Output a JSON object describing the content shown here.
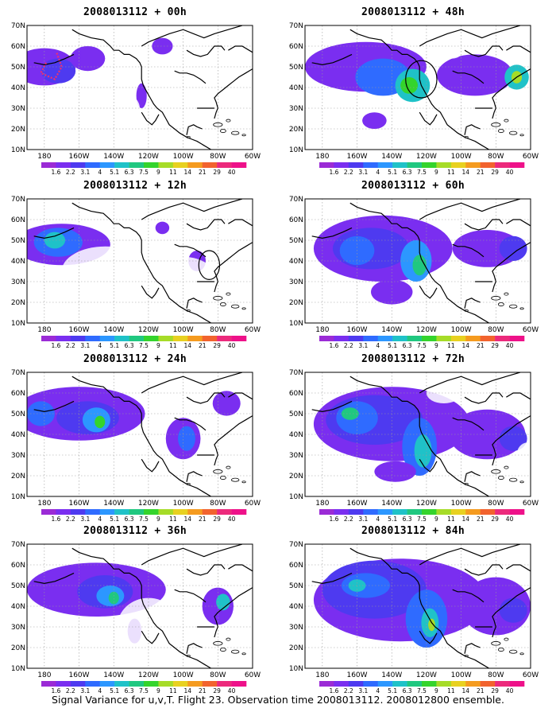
{
  "chart_data": {
    "type": "heatmap",
    "panels": [
      {
        "title": "2008013112 + 00h"
      },
      {
        "title": "2008013112 + 48h"
      },
      {
        "title": "2008013112 + 12h"
      },
      {
        "title": "2008013112 + 60h"
      },
      {
        "title": "2008013112 + 24h"
      },
      {
        "title": "2008013112 + 72h"
      },
      {
        "title": "2008013112 + 36h"
      },
      {
        "title": "2008013112 + 84h"
      }
    ],
    "y_ticks": [
      "70N",
      "60N",
      "50N",
      "40N",
      "30N",
      "20N",
      "10N"
    ],
    "y_values": [
      70,
      60,
      50,
      40,
      30,
      20,
      10
    ],
    "ylim": [
      10,
      70
    ],
    "x_ticks": [
      "180",
      "160W",
      "140W",
      "120W",
      "100W",
      "80W",
      "60W"
    ],
    "x_values": [
      180,
      200,
      220,
      240,
      260,
      280,
      300
    ],
    "xlim": [
      170,
      300
    ],
    "grid": true,
    "colorbar": {
      "levels": [
        "1.6",
        "2.2",
        "3.1",
        "4",
        "5.1",
        "6.3",
        "7.5",
        "9",
        "11",
        "14",
        "21",
        "29",
        "40"
      ],
      "colors": [
        "#9b2bd6",
        "#7a2ef0",
        "#4e3af0",
        "#2f6bff",
        "#2c97ff",
        "#1fc2c8",
        "#20c880",
        "#34d42c",
        "#a6dc28",
        "#e8d120",
        "#f59b1f",
        "#f2632e",
        "#ec2a7c",
        "#ee1189"
      ]
    },
    "caption": "Signal Variance for u,v,T. Flight 23. Observation time 2008013112. 2008012800 ensemble."
  }
}
